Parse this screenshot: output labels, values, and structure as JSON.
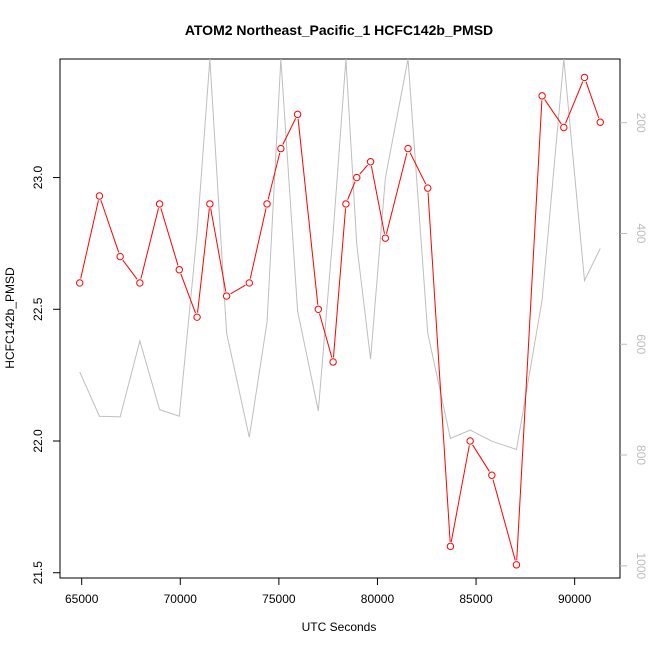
{
  "chart_data": {
    "type": "line",
    "title": "ATOM2 Northeast_Pacific_1 HCFC142b_PMSD",
    "xlabel": "UTC Seconds",
    "ylabel": "HCFC142b_PMSD",
    "x_ticks": [
      "65000",
      "70000",
      "75000",
      "80000",
      "85000",
      "90000"
    ],
    "y_ticks": [
      "21.5",
      "22.0",
      "22.5",
      "23.0"
    ],
    "y2_ticks": [
      "200",
      "400",
      "600",
      "800",
      "1000"
    ],
    "xlim": [
      63900,
      92300
    ],
    "ylim": [
      21.48,
      23.45
    ],
    "y2lim": [
      1022,
      85
    ],
    "series": [
      {
        "color": "#ff0000",
        "marker": "open-circle",
        "axis": "left",
        "x": [
          64900,
          65900,
          66950,
          67950,
          68950,
          69950,
          70850,
          71500,
          72350,
          73500,
          74400,
          75100,
          75950,
          77000,
          77750,
          78400,
          78950,
          79650,
          80400,
          81550,
          82550,
          83700,
          84700,
          85800,
          87050,
          88350,
          89450,
          90500,
          91300
        ],
        "y": [
          22.6,
          22.93,
          22.7,
          22.6,
          22.9,
          22.65,
          22.47,
          22.9,
          22.55,
          22.6,
          22.9,
          23.11,
          23.24,
          22.5,
          22.3,
          22.9,
          23.0,
          23.06,
          22.77,
          23.11,
          22.96,
          21.6,
          22.0,
          21.87,
          21.53,
          23.31,
          23.19,
          23.38,
          23.21
        ]
      },
      {
        "color": "#bebebe",
        "marker": "none",
        "axis": "right",
        "x": [
          64900,
          65900,
          66950,
          67950,
          68950,
          69950,
          70850,
          71500,
          72350,
          73500,
          74400,
          75100,
          75950,
          77000,
          77750,
          78400,
          78950,
          79650,
          80400,
          81550,
          82550,
          83700,
          84700,
          85800,
          87050,
          88350,
          89450,
          90500,
          91300
        ],
        "y": [
          650,
          730,
          731,
          594,
          718,
          730,
          400,
          85,
          580,
          768,
          560,
          85,
          540,
          720,
          400,
          85,
          420,
          627,
          300,
          85,
          580,
          770,
          755,
          775,
          790,
          520,
          85,
          485,
          427
        ]
      }
    ]
  }
}
